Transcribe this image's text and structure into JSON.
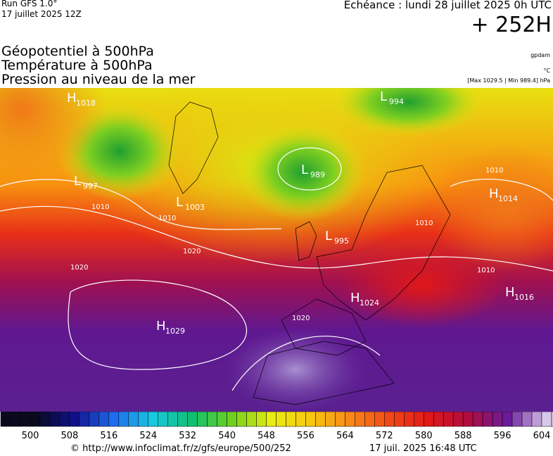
{
  "header": {
    "run": "Run GFS 1.0°",
    "run_date": "17 juillet 2025 12Z",
    "valid": "Echéance : lundi 28 juillet 2025 0h UTC",
    "lead": "+ 252H",
    "fields": [
      "Géopotentiel à 500hPa",
      "Température à 500hPa",
      "Pression au niveau de la mer"
    ],
    "units": [
      "gpdam",
      "°C",
      "[Max 1029.5 | Min 989.4] hPa"
    ]
  },
  "map": {
    "pressure_centers": [
      {
        "type": "H",
        "value": 1018
      },
      {
        "type": "L",
        "value": 997
      },
      {
        "type": "L",
        "value": 1003
      },
      {
        "type": "H",
        "value": 1029
      },
      {
        "type": "L",
        "value": 989
      },
      {
        "type": "L",
        "value": 994
      },
      {
        "type": "L",
        "value": 995
      },
      {
        "type": "H",
        "value": 1014
      },
      {
        "type": "H",
        "value": 1024
      },
      {
        "type": "H",
        "value": 1016
      }
    ],
    "isobar_labels": [
      1010,
      1010,
      1020,
      1020,
      1010,
      1010,
      1010,
      1020
    ]
  },
  "colorbar": {
    "labels": [
      500,
      508,
      516,
      524,
      532,
      540,
      548,
      556,
      564,
      572,
      580,
      588,
      596,
      604
    ],
    "palette": [
      "#0a0a1e",
      "#10108a",
      "#1e6cf0",
      "#18c8e0",
      "#10c070",
      "#70d020",
      "#e8ec10",
      "#f8c810",
      "#f88818",
      "#f04818",
      "#e01818",
      "#b00c40",
      "#6a1a9a",
      "#d8c8ea"
    ]
  },
  "footer": {
    "source": "© http://www.infoclimat.fr/z/gfs/europe/500/252",
    "generated": "17 juil. 2025 16:48 UTC"
  }
}
